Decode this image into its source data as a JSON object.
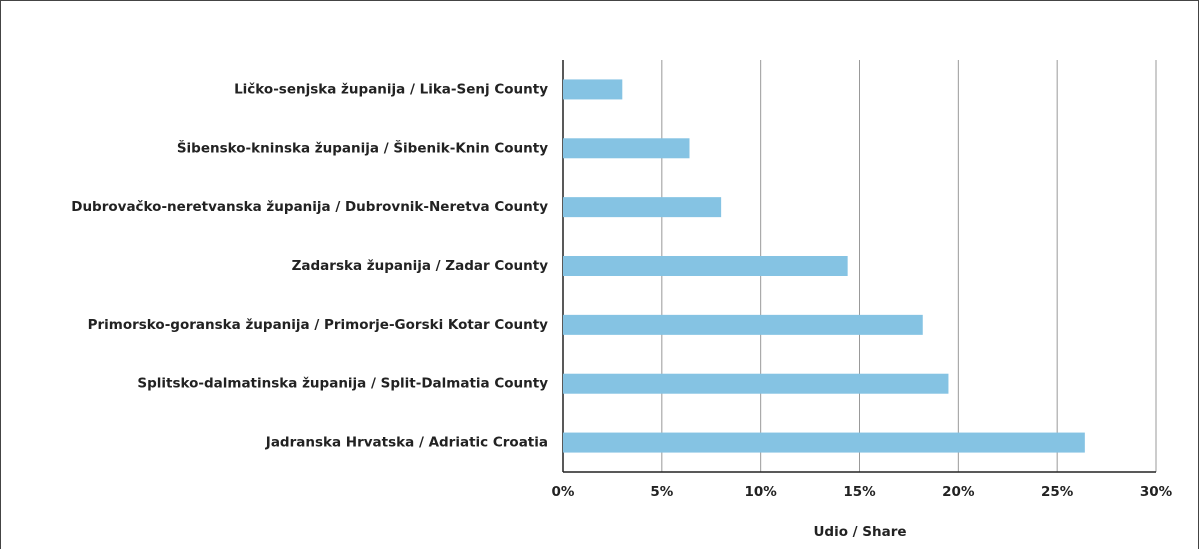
{
  "chart_data": {
    "type": "barh",
    "x_label": "Udio / Share",
    "categories": [
      "Ličko-senjska županija / Lika-Senj County",
      "Šibensko-kninska županija / Šibenik-Knin County",
      "Dubrovačko-neretvanska županija / Dubrovnik-Neretva County",
      "Zadarska županija / Zadar County",
      "Primorsko-goranska županija / Primorje-Gorski Kotar County",
      "Splitsko-dalmatinska županija / Split-Dalmatia County",
      "Jadranska Hrvatska / Adriatic Croatia"
    ],
    "values": [
      3.0,
      6.4,
      8.0,
      14.4,
      18.2,
      19.5,
      26.4
    ],
    "color": "#85c3e3",
    "xlim": [
      0,
      30
    ],
    "xticks": [
      {
        "value": 0,
        "label": "0%"
      },
      {
        "value": 5,
        "label": "5%"
      },
      {
        "value": 10,
        "label": "10%"
      },
      {
        "value": 15,
        "label": "15%"
      },
      {
        "value": 20,
        "label": "20%"
      },
      {
        "value": 25,
        "label": "25%"
      },
      {
        "value": 30,
        "label": "30%"
      }
    ],
    "grid": true
  }
}
